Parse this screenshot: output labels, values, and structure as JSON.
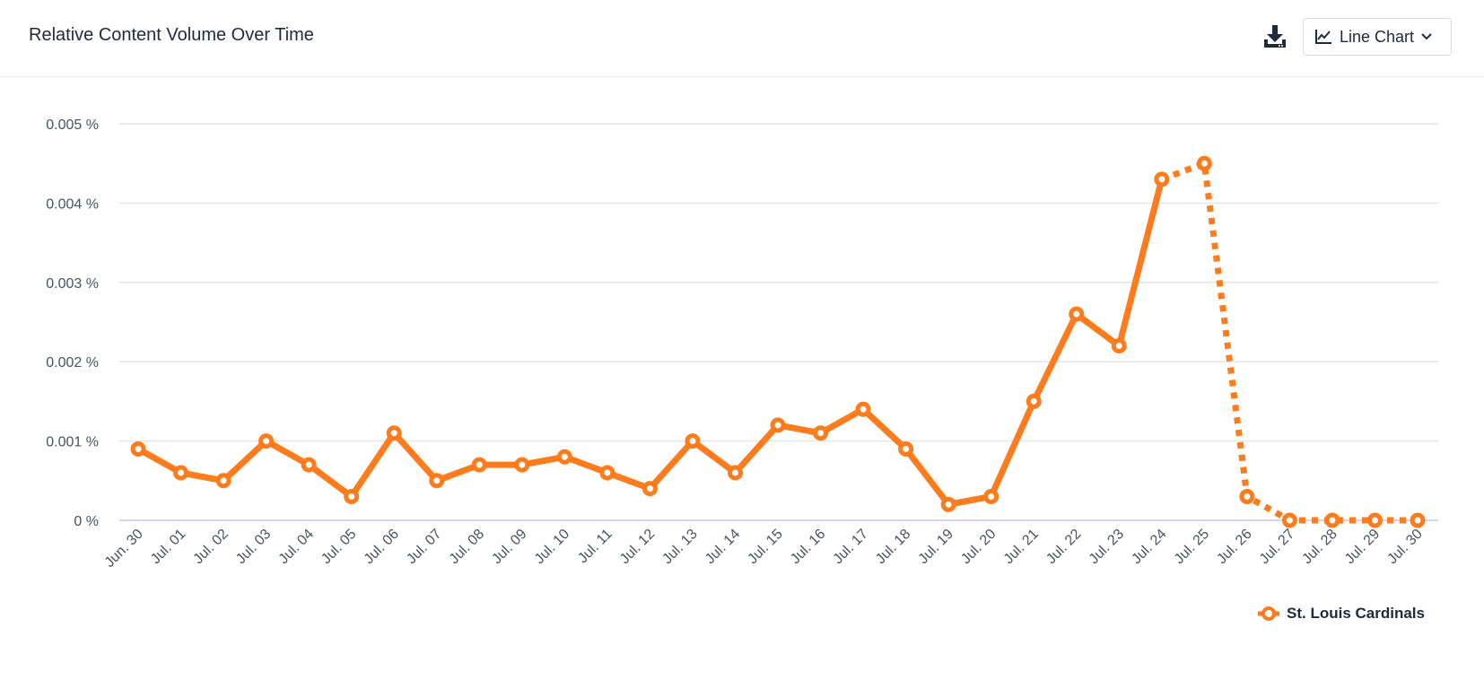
{
  "header": {
    "title": "Relative Content Volume Over Time",
    "chart_type_label": "Line Chart",
    "download_icon": "download-icon",
    "chart_type_icon": "line-chart-icon",
    "dropdown_icon": "chevron-down-icon"
  },
  "colors": {
    "series": "#ff7b1c",
    "grid": "#e3e6ec",
    "baseline": "#c9c6f2",
    "tick_text": "#4a5160"
  },
  "chart_data": {
    "type": "line",
    "x": [
      "Jun. 30",
      "Jul. 01",
      "Jul. 02",
      "Jul. 03",
      "Jul. 04",
      "Jul. 05",
      "Jul. 06",
      "Jul. 07",
      "Jul. 08",
      "Jul. 09",
      "Jul. 10",
      "Jul. 11",
      "Jul. 12",
      "Jul. 13",
      "Jul. 14",
      "Jul. 15",
      "Jul. 16",
      "Jul. 17",
      "Jul. 18",
      "Jul. 19",
      "Jul. 20",
      "Jul. 21",
      "Jul. 22",
      "Jul. 23",
      "Jul. 24",
      "Jul. 25",
      "Jul. 26",
      "Jul. 27",
      "Jul. 28",
      "Jul. 29",
      "Jul. 30"
    ],
    "series": [
      {
        "name": "St. Louis Cardinals",
        "values": [
          0.0009,
          0.0006,
          0.0005,
          0.001,
          0.0007,
          0.0003,
          0.0011,
          0.0005,
          0.0007,
          0.0007,
          0.0008,
          0.0006,
          0.0004,
          0.001,
          0.0006,
          0.0012,
          0.0011,
          0.0014,
          0.0009,
          0.0002,
          0.0003,
          0.0015,
          0.0026,
          0.0022,
          0.0043,
          0.0045,
          0.0003,
          0.0,
          0.0,
          0.0,
          0.0
        ],
        "solid_until_index": 24
      }
    ],
    "yticks": [
      "0 %",
      "0.001 %",
      "0.002 %",
      "0.003 %",
      "0.004 %",
      "0.005 %"
    ],
    "ylim": [
      0,
      0.005
    ],
    "title": "",
    "xlabel": "",
    "ylabel": "",
    "grid": true,
    "legend_position": "bottom-right"
  }
}
